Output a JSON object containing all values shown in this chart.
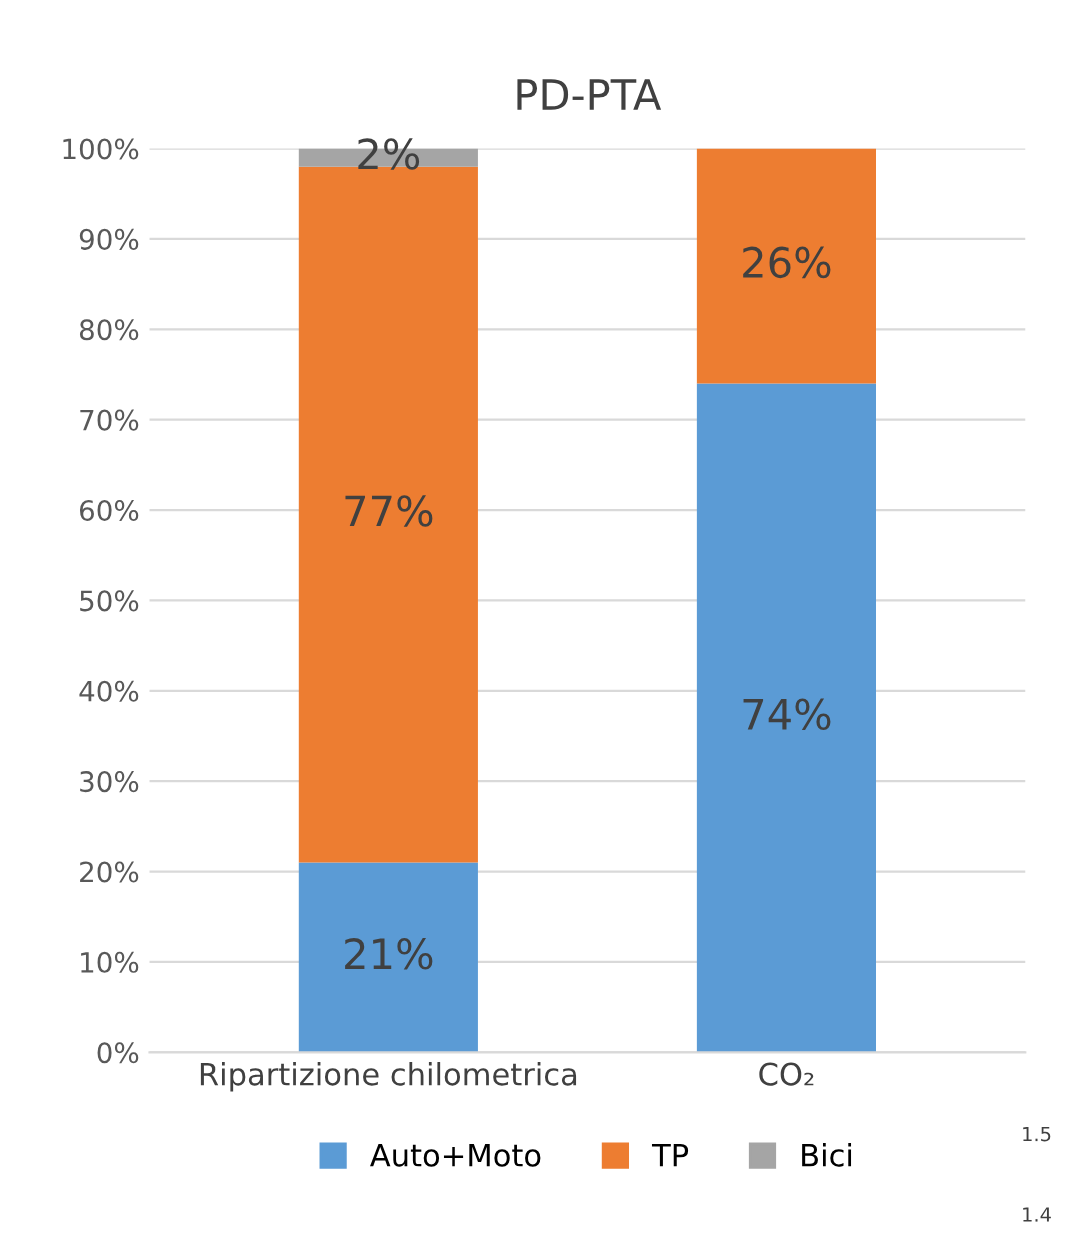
{
  "chart_data": {
    "type": "bar",
    "title": "PD-PTA",
    "stacked": true,
    "categories": [
      "Ripartizione chilometrica",
      "CO₂"
    ],
    "series": [
      {
        "name": "Auto+Moto",
        "color": "#5b9bd5",
        "values": [
          21,
          74
        ],
        "value_labels": [
          "21%",
          "74%"
        ]
      },
      {
        "name": "TP",
        "color": "#ed7d31",
        "values": [
          77,
          26
        ],
        "value_labels": [
          "77%",
          "26%"
        ]
      },
      {
        "name": "Bici",
        "color": "#a5a5a5",
        "values": [
          2,
          null
        ],
        "value_labels": [
          "2%",
          null
        ]
      }
    ],
    "ylim": [
      0,
      100
    ],
    "yticks": [
      {
        "value": 0,
        "label": "0%"
      },
      {
        "value": 10,
        "label": "10%"
      },
      {
        "value": 20,
        "label": "20%"
      },
      {
        "value": 30,
        "label": "30%"
      },
      {
        "value": 40,
        "label": "40%"
      },
      {
        "value": 50,
        "label": "50%"
      },
      {
        "value": 60,
        "label": "60%"
      },
      {
        "value": 70,
        "label": "70%"
      },
      {
        "value": 80,
        "label": "80%"
      },
      {
        "value": 90,
        "label": "90%"
      },
      {
        "value": 100,
        "label": "100%"
      }
    ],
    "grid": "y",
    "legend": "bottom",
    "annotations": [
      "1.5",
      "1.4"
    ]
  }
}
